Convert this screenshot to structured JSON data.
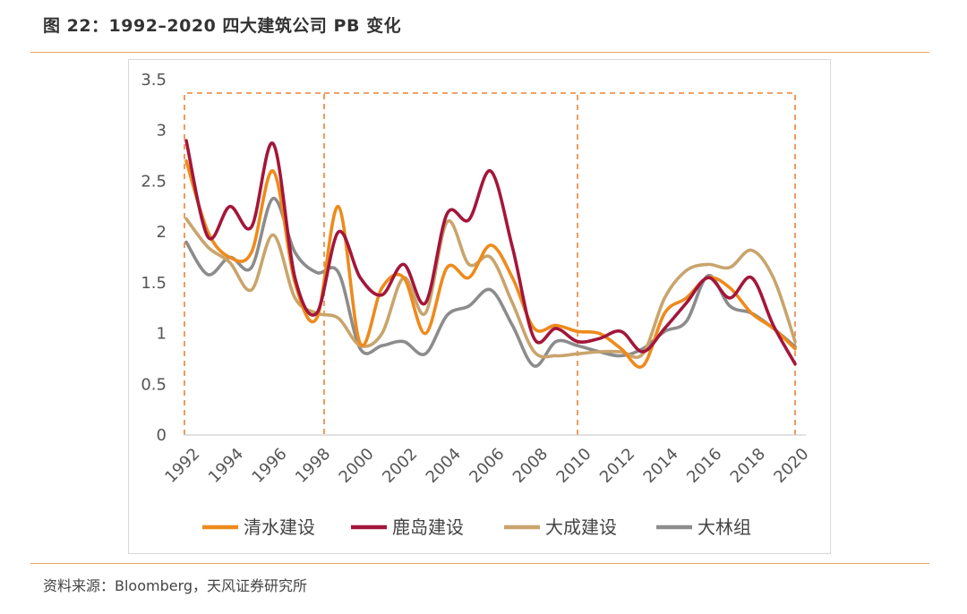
{
  "header": {
    "title": "图 22：1992–2020 四大建筑公司 PB 变化"
  },
  "footer": {
    "source": "资料来源：Bloomberg，天风证券研究所"
  },
  "colors": {
    "rule": "#e9a86a",
    "highlight": "#e9843a"
  },
  "chart_data": {
    "type": "line",
    "title": "",
    "xlabel": "",
    "ylabel": "",
    "x": [
      1992,
      1993,
      1994,
      1995,
      1996,
      1997,
      1998,
      1999,
      2000,
      2001,
      2002,
      2003,
      2004,
      2005,
      2006,
      2007,
      2008,
      2009,
      2010,
      2011,
      2012,
      2013,
      2014,
      2015,
      2016,
      2017,
      2018,
      2019,
      2020
    ],
    "x_tick_labels": [
      "1992",
      "1994",
      "1996",
      "1998",
      "2000",
      "2002",
      "2004",
      "2006",
      "2008",
      "2010",
      "2012",
      "2014",
      "2016",
      "2018",
      "2020"
    ],
    "ylim": [
      0,
      3.5
    ],
    "y_ticks": [
      "0",
      "0.5",
      "1",
      "1.5",
      "2",
      "2.5",
      "3",
      "3.5"
    ],
    "grid": false,
    "legend_position": "bottom",
    "highlight_periods": [
      [
        1992,
        1998
      ],
      [
        1998,
        2010
      ],
      [
        2010,
        2020
      ]
    ],
    "series": [
      {
        "name": "清水建设",
        "color": "#ee8a1c",
        "values": [
          2.7,
          2.0,
          1.75,
          1.8,
          2.6,
          1.5,
          1.15,
          2.25,
          0.9,
          1.45,
          1.55,
          1.0,
          1.65,
          1.55,
          1.87,
          1.55,
          1.05,
          1.08,
          1.02,
          1.0,
          0.85,
          0.68,
          1.2,
          1.35,
          1.55,
          1.45,
          1.2,
          1.05,
          0.85
        ]
      },
      {
        "name": "鹿岛建设",
        "color": "#a3163a",
        "values": [
          2.9,
          1.95,
          2.25,
          2.05,
          2.87,
          1.55,
          1.2,
          2.0,
          1.55,
          1.38,
          1.68,
          1.3,
          2.18,
          2.12,
          2.6,
          1.85,
          0.95,
          1.05,
          0.92,
          0.95,
          1.02,
          0.82,
          1.05,
          1.3,
          1.55,
          1.35,
          1.55,
          1.08,
          0.7
        ]
      },
      {
        "name": "大成建设",
        "color": "#c9a46c",
        "values": [
          2.13,
          1.85,
          1.7,
          1.43,
          1.97,
          1.35,
          1.2,
          1.15,
          0.88,
          1.0,
          1.55,
          1.2,
          2.1,
          1.68,
          1.75,
          1.3,
          0.82,
          0.78,
          0.8,
          0.82,
          0.82,
          0.8,
          1.35,
          1.62,
          1.68,
          1.65,
          1.82,
          1.55,
          0.92
        ]
      },
      {
        "name": "大林组",
        "color": "#8c8c8c",
        "values": [
          1.9,
          1.58,
          1.75,
          1.65,
          2.33,
          1.8,
          1.6,
          1.6,
          0.85,
          0.88,
          0.92,
          0.8,
          1.18,
          1.27,
          1.43,
          1.08,
          0.68,
          0.92,
          0.88,
          0.82,
          0.78,
          0.85,
          1.02,
          1.12,
          1.57,
          1.27,
          1.2,
          1.05,
          0.87
        ]
      }
    ]
  }
}
